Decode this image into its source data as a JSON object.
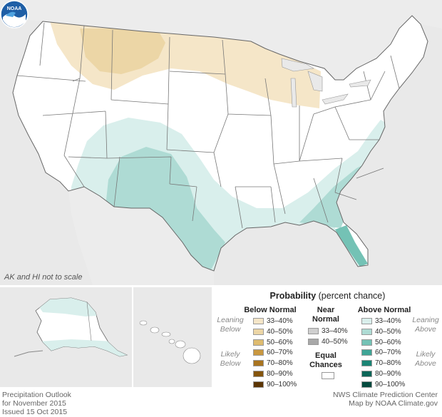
{
  "map": {
    "scale_note": "AK and HI not to scale",
    "logo_text": "NOAA",
    "colors": {
      "land": "#ffffff",
      "outside": "#e9e9e9",
      "water": "#e9e9e9",
      "border": "#777777",
      "below_33_40": "#f5e6c8",
      "below_40_50": "#ecd6a6",
      "above_33_40": "#d9efec",
      "above_40_50": "#aedbd4",
      "above_50_60": "#74c2b5"
    }
  },
  "legend": {
    "title_bold": "Probability",
    "title_rest": "(percent chance)",
    "below": {
      "heading": "Below Normal",
      "leaning_label": "Leaning Below",
      "likely_label": "Likely Below",
      "rows": [
        {
          "label": "33–40%",
          "color": "#f5e6c8"
        },
        {
          "label": "40–50%",
          "color": "#ecd6a6"
        },
        {
          "label": "50–60%",
          "color": "#dfbc70"
        },
        {
          "label": "60–70%",
          "color": "#c99840"
        },
        {
          "label": "70–80%",
          "color": "#a9741f"
        },
        {
          "label": "80–90%",
          "color": "#85550d"
        },
        {
          "label": "90–100%",
          "color": "#5c3504"
        }
      ]
    },
    "near": {
      "heading": "Near Normal",
      "rows": [
        {
          "label": "33–40%",
          "color": "#cfcfcf"
        },
        {
          "label": "40–50%",
          "color": "#a8a8a8"
        }
      ]
    },
    "equal": {
      "heading": "Equal Chances",
      "color": "#ffffff"
    },
    "above": {
      "heading": "Above Normal",
      "leaning_label": "Leaning Above",
      "likely_label": "Likely Above",
      "rows": [
        {
          "label": "33–40%",
          "color": "#d9efec"
        },
        {
          "label": "40–50%",
          "color": "#aedbd4"
        },
        {
          "label": "50–60%",
          "color": "#74c2b5"
        },
        {
          "label": "60–70%",
          "color": "#3fa496"
        },
        {
          "label": "70–80%",
          "color": "#1a8474"
        },
        {
          "label": "80–90%",
          "color": "#0b6658"
        },
        {
          "label": "90–100%",
          "color": "#034a3e"
        }
      ]
    }
  },
  "footer": {
    "left_line1": "Precipitation Outlook",
    "left_line2": "for November 2015",
    "left_line3": "Issued 15 Oct 2015",
    "right_line1": "NWS Climate Prediction Center",
    "right_line2": "Map by NOAA Climate.gov"
  }
}
